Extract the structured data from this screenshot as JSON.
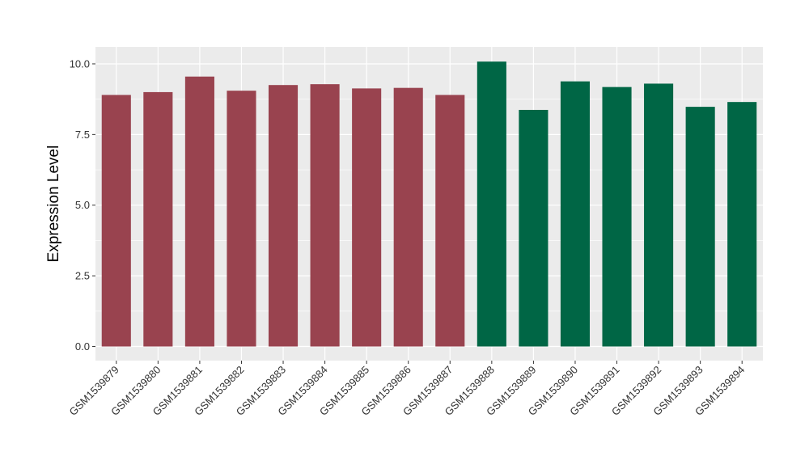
{
  "chart_data": {
    "type": "bar",
    "title": "",
    "xlabel": "",
    "ylabel": "Expression Level",
    "ylim": [
      -0.5,
      10.6
    ],
    "yticks": [
      "0.0",
      "2.5",
      "5.0",
      "7.5",
      "10.0"
    ],
    "ytick_values": [
      0,
      2.5,
      5,
      7.5,
      10
    ],
    "grid": true,
    "categories": [
      "GSM1539879",
      "GSM1539880",
      "GSM1539881",
      "GSM1539882",
      "GSM1539883",
      "GSM1539884",
      "GSM1539885",
      "GSM1539886",
      "GSM1539887",
      "GSM1539888",
      "GSM1539889",
      "GSM1539890",
      "GSM1539891",
      "GSM1539892",
      "GSM1539893",
      "GSM1539894"
    ],
    "values": [
      8.9,
      9.0,
      9.55,
      9.05,
      9.25,
      9.28,
      9.13,
      9.15,
      8.9,
      10.08,
      8.37,
      9.38,
      9.18,
      9.3,
      8.48,
      8.65
    ],
    "bar_colors": [
      "#99434f",
      "#99434f",
      "#99434f",
      "#99434f",
      "#99434f",
      "#99434f",
      "#99434f",
      "#99434f",
      "#99434f",
      "#006645",
      "#006645",
      "#006645",
      "#006645",
      "#006645",
      "#006645",
      "#006645"
    ],
    "panel_background": "#ebebeb",
    "grid_color": "#ffffff"
  }
}
